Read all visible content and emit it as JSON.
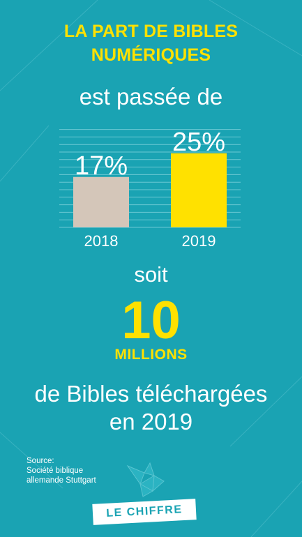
{
  "title_line1": "LA PART DE BIBLES",
  "title_line2": "NUMÉRIQUES",
  "intro": "est passée de",
  "chart_data": {
    "type": "bar",
    "categories": [
      "2018",
      "2019"
    ],
    "values": [
      17,
      25
    ],
    "value_labels": [
      "17%",
      "25%"
    ],
    "ylim": [
      0,
      40
    ],
    "grid": true,
    "colors": [
      "#d4c6b9",
      "#ffe100"
    ]
  },
  "soit": "soit",
  "big_number": "10",
  "big_unit": "MILLIONS",
  "outro_line1": "de Bibles téléchargées",
  "outro_line2": "en 2019",
  "source_lines": [
    "Source:",
    "Société biblique",
    "allemande Stuttgart"
  ],
  "tag_label": "LE CHIFFRE",
  "colors": {
    "background": "#1aa3b3",
    "accent_yellow": "#ffe100",
    "bar_2018": "#d4c6b9",
    "text": "#ffffff"
  },
  "logo_icon": "bird-icon"
}
